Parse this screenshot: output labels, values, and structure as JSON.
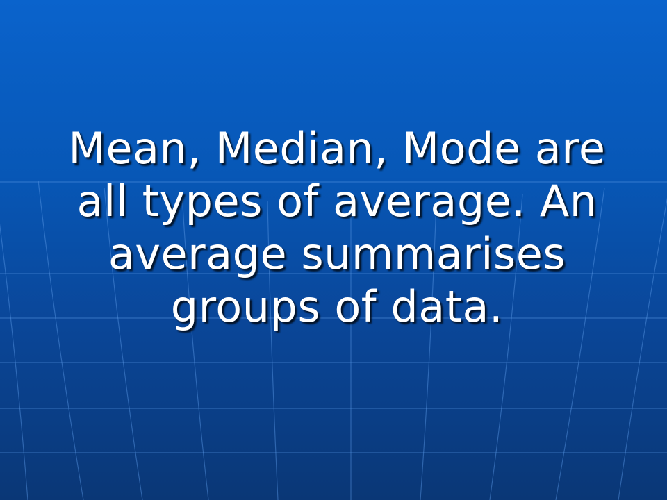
{
  "slide": {
    "lines": [
      "Mean, Median, Mode are",
      "all types of average. An",
      "average summarises",
      "groups of data."
    ]
  },
  "colors": {
    "background_top": "#0a63cc",
    "background_bottom": "#0a3776",
    "grid_lines": "#5a9ae6",
    "text": "#ffffff"
  }
}
